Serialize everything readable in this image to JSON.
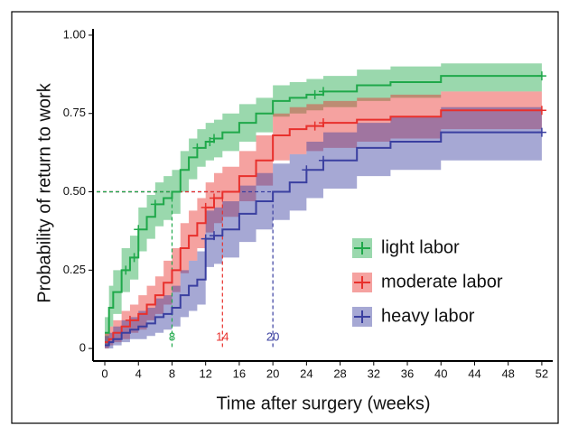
{
  "chart_data": {
    "type": "step",
    "x_label": "Time after surgery (weeks)",
    "y_label": "Probability of return to work",
    "x": [
      0,
      0.5,
      1,
      2,
      3,
      4,
      5,
      6,
      7,
      8,
      9,
      10,
      11,
      12,
      13,
      14,
      16,
      18,
      20,
      22,
      24,
      26,
      30,
      34,
      40,
      52
    ],
    "xlim": [
      -1.4,
      53.3
    ],
    "ylim": [
      -0.04,
      1.02
    ],
    "xticks": [
      0,
      4,
      8,
      12,
      16,
      20,
      24,
      28,
      32,
      36,
      40,
      44,
      48,
      52
    ],
    "yticks": [
      {
        "value": 1,
        "label": "1.00"
      },
      {
        "value": 0.75,
        "label": "0.75"
      },
      {
        "value": 0.5,
        "label": "0.50"
      },
      {
        "value": 0.25,
        "label": "0.25"
      },
      0
    ],
    "median_level": 0.5,
    "legend": "right",
    "series": [
      {
        "name": "light labor",
        "color": "#1fa84a",
        "median": 8,
        "values": [
          0.05,
          0.13,
          0.18,
          0.25,
          0.29,
          0.38,
          0.42,
          0.46,
          0.48,
          0.5,
          0.57,
          0.61,
          0.64,
          0.66,
          0.67,
          0.69,
          0.72,
          0.75,
          0.79,
          0.8,
          0.81,
          0.82,
          0.84,
          0.85,
          0.87,
          0.87
        ],
        "lower": [
          0.01,
          0.07,
          0.11,
          0.18,
          0.22,
          0.31,
          0.35,
          0.39,
          0.41,
          0.43,
          0.5,
          0.54,
          0.58,
          0.6,
          0.61,
          0.63,
          0.66,
          0.69,
          0.74,
          0.75,
          0.76,
          0.77,
          0.79,
          0.8,
          0.82,
          0.82
        ],
        "upper": [
          0.1,
          0.2,
          0.25,
          0.32,
          0.36,
          0.45,
          0.49,
          0.53,
          0.55,
          0.57,
          0.63,
          0.67,
          0.7,
          0.72,
          0.73,
          0.75,
          0.78,
          0.8,
          0.84,
          0.85,
          0.86,
          0.87,
          0.89,
          0.9,
          0.91,
          0.91
        ],
        "censored": [
          2.5,
          3.5,
          4,
          6,
          11,
          12.5,
          13,
          25,
          26,
          52
        ]
      },
      {
        "name": "moderate labor",
        "color": "#e8302c",
        "median": 14,
        "values": [
          0.02,
          0.03,
          0.05,
          0.07,
          0.09,
          0.11,
          0.14,
          0.17,
          0.21,
          0.25,
          0.32,
          0.36,
          0.4,
          0.45,
          0.48,
          0.5,
          0.55,
          0.6,
          0.68,
          0.7,
          0.71,
          0.72,
          0.73,
          0.74,
          0.76,
          0.76
        ],
        "lower": [
          0.0,
          0.01,
          0.02,
          0.03,
          0.05,
          0.06,
          0.09,
          0.11,
          0.14,
          0.18,
          0.24,
          0.28,
          0.32,
          0.37,
          0.4,
          0.42,
          0.47,
          0.52,
          0.6,
          0.62,
          0.63,
          0.64,
          0.66,
          0.67,
          0.7,
          0.7
        ],
        "upper": [
          0.05,
          0.07,
          0.09,
          0.12,
          0.14,
          0.17,
          0.2,
          0.23,
          0.28,
          0.32,
          0.4,
          0.44,
          0.48,
          0.53,
          0.56,
          0.58,
          0.63,
          0.68,
          0.75,
          0.77,
          0.78,
          0.79,
          0.8,
          0.81,
          0.82,
          0.82
        ],
        "censored": [
          3,
          12,
          13,
          25,
          26,
          52
        ]
      },
      {
        "name": "heavy labor",
        "color": "#3a3fa0",
        "median": 20,
        "values": [
          0.01,
          0.02,
          0.03,
          0.05,
          0.06,
          0.07,
          0.08,
          0.1,
          0.11,
          0.13,
          0.17,
          0.2,
          0.22,
          0.35,
          0.36,
          0.38,
          0.43,
          0.47,
          0.5,
          0.53,
          0.57,
          0.6,
          0.64,
          0.66,
          0.69,
          0.69
        ],
        "lower": [
          0.0,
          0.0,
          0.01,
          0.02,
          0.03,
          0.03,
          0.04,
          0.05,
          0.06,
          0.07,
          0.1,
          0.12,
          0.14,
          0.26,
          0.27,
          0.29,
          0.34,
          0.38,
          0.41,
          0.44,
          0.48,
          0.51,
          0.55,
          0.57,
          0.6,
          0.6
        ],
        "upper": [
          0.04,
          0.05,
          0.07,
          0.09,
          0.1,
          0.12,
          0.13,
          0.16,
          0.17,
          0.2,
          0.25,
          0.28,
          0.31,
          0.44,
          0.45,
          0.47,
          0.52,
          0.56,
          0.59,
          0.62,
          0.66,
          0.69,
          0.72,
          0.74,
          0.77,
          0.77
        ],
        "censored": [
          12,
          13,
          24,
          26,
          52
        ]
      }
    ]
  }
}
